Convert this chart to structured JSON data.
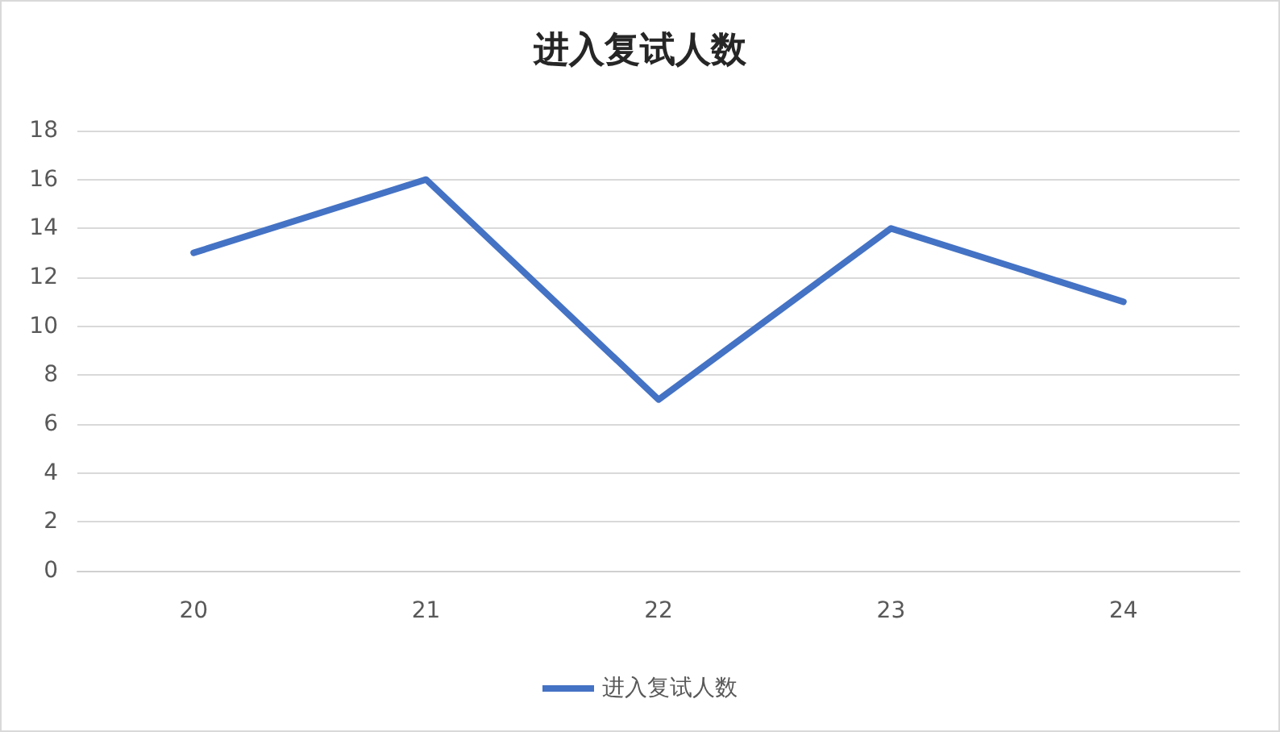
{
  "chart_data": {
    "type": "line",
    "title": "进入复试人数",
    "categories": [
      "20",
      "21",
      "22",
      "23",
      "24"
    ],
    "series": [
      {
        "name": "进入复试人数",
        "color": "#4472c4",
        "values": [
          13,
          16,
          7,
          14,
          11
        ]
      }
    ],
    "ylim": [
      0,
      18
    ],
    "yticks": [
      0,
      2,
      4,
      6,
      8,
      10,
      12,
      14,
      16,
      18
    ],
    "grid": "y",
    "legend": "bottom",
    "marker": "none",
    "line_style": "solid"
  }
}
